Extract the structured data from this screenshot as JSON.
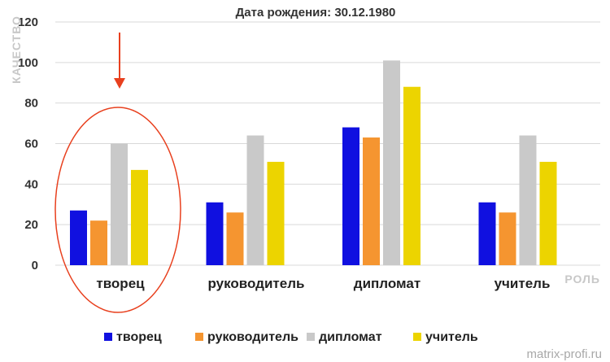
{
  "chart_data": {
    "type": "bar",
    "title": "Дата рождения: 30.12.1980",
    "ylabel": "КАЧЕСТВО",
    "xlabel": "РОЛЬ",
    "categories": [
      "творец",
      "руководитель",
      "дипломат",
      "учитель"
    ],
    "series": [
      {
        "name": "творец",
        "color": "#1010e0",
        "values": [
          27,
          31,
          68,
          31
        ]
      },
      {
        "name": "руководитель",
        "color": "#f59530",
        "values": [
          22,
          26,
          63,
          26
        ]
      },
      {
        "name": "дипломат",
        "color": "#c9c9c9",
        "values": [
          60,
          64,
          101,
          64
        ]
      },
      {
        "name": "учитель",
        "color": "#ecd400",
        "values": [
          47,
          51,
          88,
          51
        ]
      }
    ],
    "ylim": [
      0,
      120
    ],
    "yticks": [
      0,
      20,
      40,
      60,
      80,
      100,
      120
    ],
    "grid": true,
    "legend": "bottom",
    "highlight": {
      "category": "творец",
      "shape": "red-ellipse-with-arrow",
      "color": "#e8401e"
    }
  },
  "watermark": "matrix-profi.ru"
}
